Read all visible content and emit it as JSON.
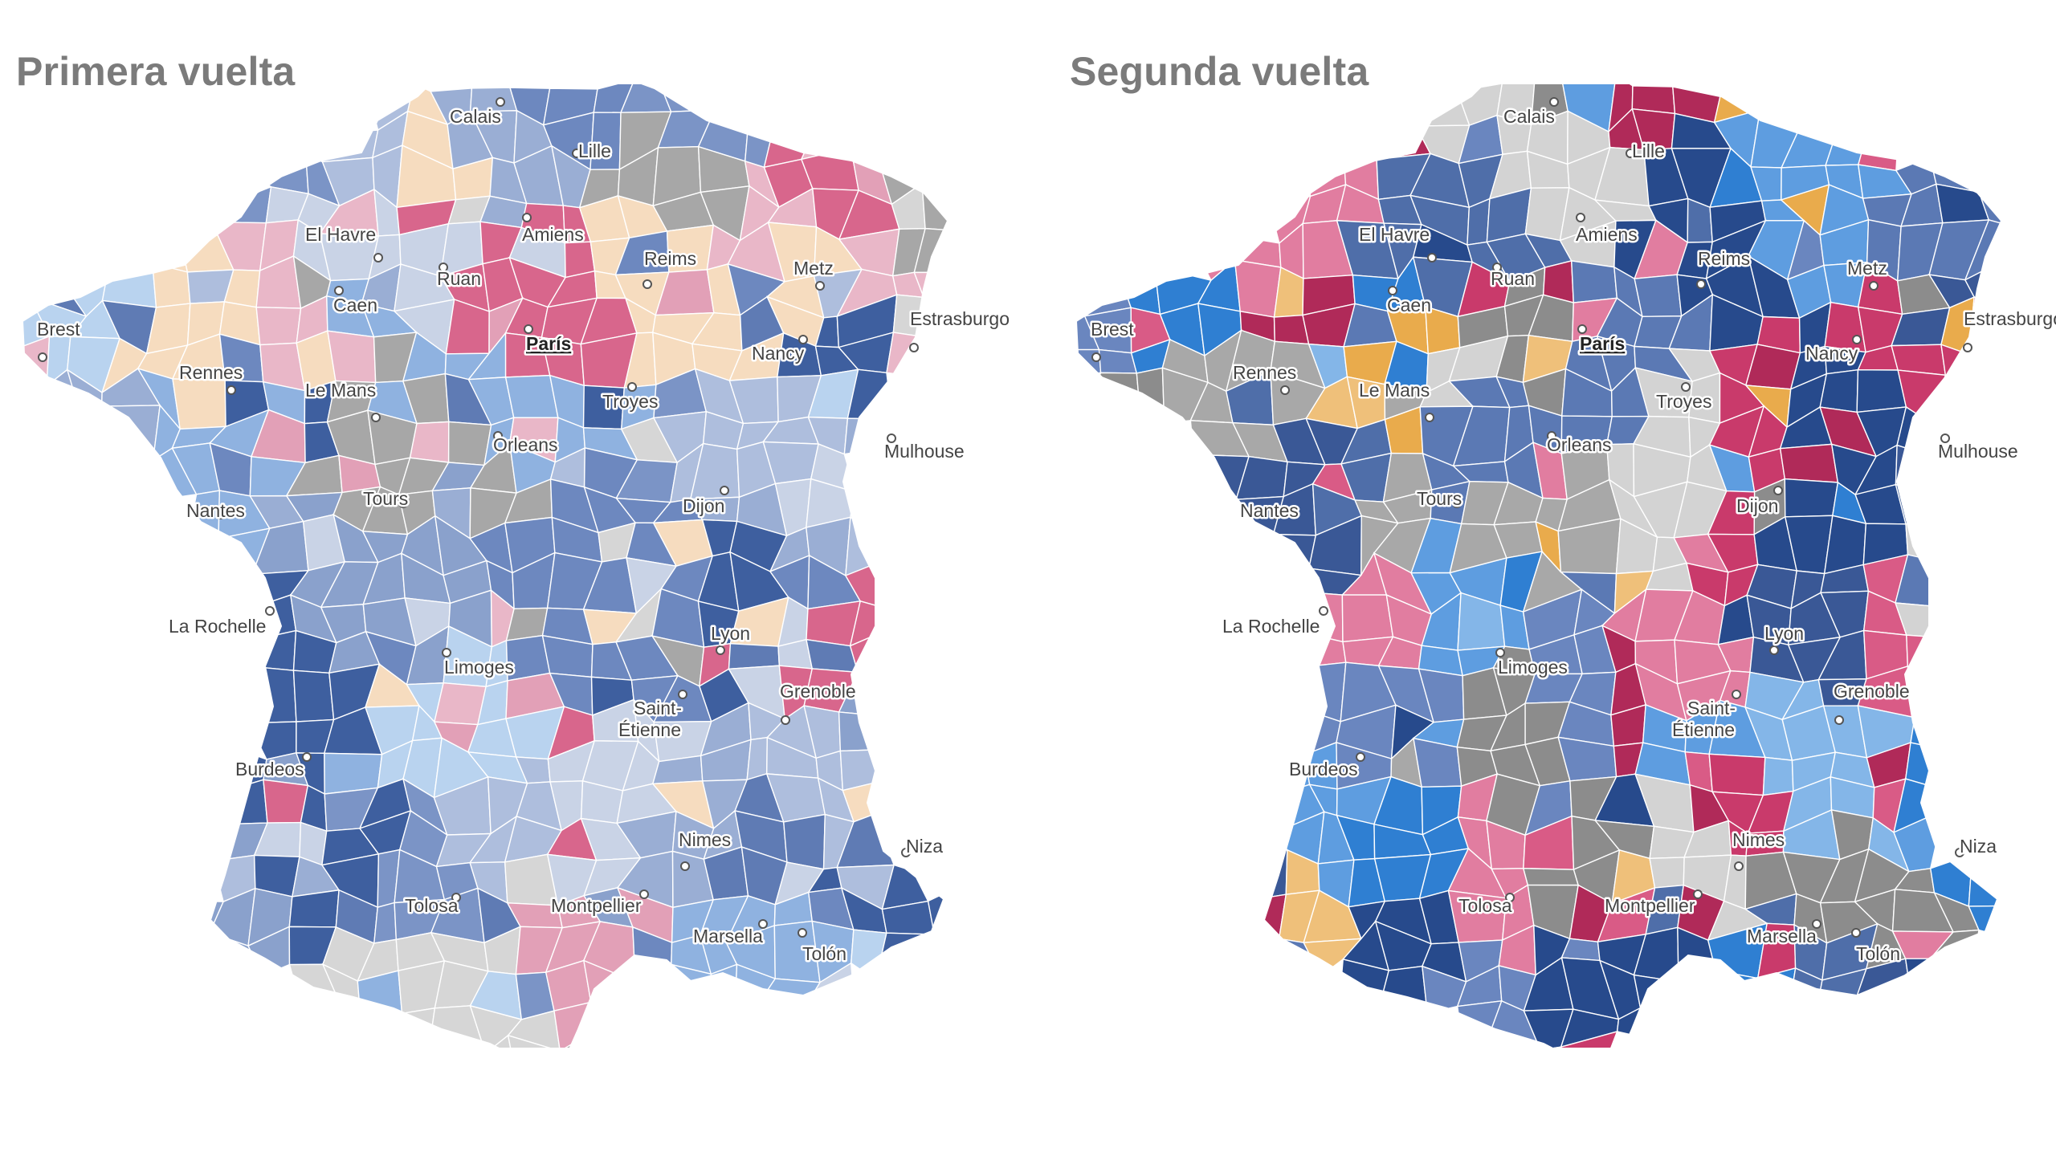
{
  "panels": [
    {
      "title": "Primera vuelta",
      "palette": [
        "#5f7bb4",
        "#6d88bf",
        "#7b94c6",
        "#8aa1cc",
        "#9aaed4",
        "#aebedd",
        "#c9d3e6",
        "#d6d6d6",
        "#a7a7a7",
        "#f6dcbf",
        "#e9b7c8",
        "#e2a0b7",
        "#d8668c",
        "#8fb2e0",
        "#b9d3ef",
        "#3e5f9f"
      ]
    },
    {
      "title": "Segunda vuelta",
      "palette": [
        "#4f6ea9",
        "#5b79b4",
        "#6a86bf",
        "#3a5896",
        "#274a8c",
        "#2f7fd2",
        "#5e9de0",
        "#84b6e8",
        "#efc07a",
        "#e9ab4c",
        "#d95b86",
        "#e17da0",
        "#c93a6b",
        "#b02a59",
        "#8c8c8c",
        "#a8a8a8",
        "#d3d3d3"
      ]
    }
  ],
  "cities": [
    {
      "name": "Calais",
      "capital": false
    },
    {
      "name": "Lille",
      "capital": false
    },
    {
      "name": "El Havre",
      "capital": false
    },
    {
      "name": "Amiens",
      "capital": false
    },
    {
      "name": "Reims",
      "capital": false
    },
    {
      "name": "Metz",
      "capital": false
    },
    {
      "name": "Ruan",
      "capital": false
    },
    {
      "name": "Caen",
      "capital": false
    },
    {
      "name": "Brest",
      "capital": false
    },
    {
      "name": "París",
      "capital": true
    },
    {
      "name": "Estrasburgo",
      "capital": false
    },
    {
      "name": "Rennes",
      "capital": false
    },
    {
      "name": "Le Mans",
      "capital": false
    },
    {
      "name": "Nancy",
      "capital": false
    },
    {
      "name": "Troyes",
      "capital": false
    },
    {
      "name": "Orleans",
      "capital": false
    },
    {
      "name": "Mulhouse",
      "capital": false
    },
    {
      "name": "Tours",
      "capital": false
    },
    {
      "name": "Nantes",
      "capital": false
    },
    {
      "name": "Dijon",
      "capital": false
    },
    {
      "name": "La Rochelle",
      "capital": false
    },
    {
      "name": "Lyon",
      "capital": false
    },
    {
      "name": "Limoges",
      "capital": false
    },
    {
      "name": "Grenoble",
      "capital": false
    },
    {
      "name": "Saint-",
      "capital": false
    },
    {
      "name": "Étienne",
      "capital": false
    },
    {
      "name": "Burdeos",
      "capital": false
    },
    {
      "name": "Nimes",
      "capital": false
    },
    {
      "name": "Niza",
      "capital": false
    },
    {
      "name": "Tolosa",
      "capital": false
    },
    {
      "name": "Montpellier",
      "capital": false
    },
    {
      "name": "Marsella",
      "capital": false
    },
    {
      "name": "Tolón",
      "capital": false
    }
  ]
}
